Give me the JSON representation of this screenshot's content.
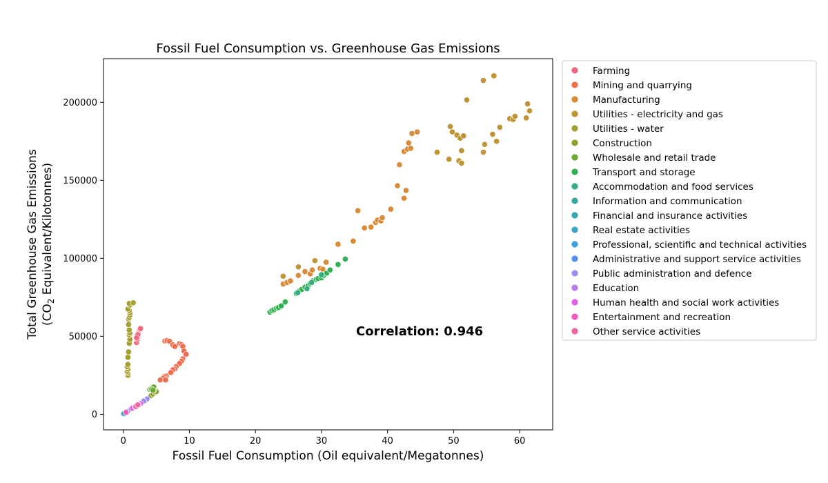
{
  "chart_data": {
    "type": "scatter",
    "title": "Fossil Fuel Consumption vs. Greenhouse Gas Emissions",
    "xlabel": "Fossil Fuel Consumption (Oil equivalent/Megatonnes)",
    "ylabel_line1": "Total Greenhouse Gas Emissions",
    "ylabel_line2_pre": "(CO",
    "ylabel_line2_sub": "2",
    "ylabel_line2_post": " Equivalent/Kilotonnes)",
    "annotation": "Correlation: 0.946",
    "xlim": [
      -3,
      65
    ],
    "ylim": [
      -10000,
      228000
    ],
    "xticks": [
      0,
      10,
      20,
      30,
      40,
      50,
      60
    ],
    "xtick_labels": [
      "0",
      "10",
      "20",
      "30",
      "40",
      "50",
      "60"
    ],
    "yticks": [
      0,
      50000,
      100000,
      150000,
      200000
    ],
    "ytick_labels": [
      "0",
      "50000",
      "100000",
      "150000",
      "200000"
    ],
    "grid": false,
    "legend_position": "outside-right",
    "series": [
      {
        "name": "Farming",
        "color": "#f0677e",
        "points": [
          [
            2.0,
            46000
          ],
          [
            2.1,
            48000
          ],
          [
            2.2,
            50000
          ],
          [
            2.3,
            52000
          ],
          [
            2.4,
            53500
          ],
          [
            2.5,
            54500
          ],
          [
            2.6,
            55000
          ],
          [
            2.2,
            51000
          ],
          [
            2.0,
            49000
          ]
        ]
      },
      {
        "name": "Mining and quarrying",
        "color": "#ee6f4f",
        "points": [
          [
            6.3,
            47000
          ],
          [
            6.6,
            47200
          ],
          [
            7.0,
            46800
          ],
          [
            7.5,
            44500
          ],
          [
            7.8,
            43500
          ],
          [
            8.5,
            45200
          ],
          [
            8.8,
            44600
          ],
          [
            9.0,
            43500
          ],
          [
            9.2,
            40500
          ],
          [
            9.5,
            38500
          ],
          [
            9.0,
            35500
          ],
          [
            8.8,
            34000
          ],
          [
            8.5,
            32500
          ],
          [
            8.0,
            30500
          ],
          [
            7.8,
            29000
          ],
          [
            7.5,
            28500
          ],
          [
            7.2,
            26800
          ],
          [
            6.5,
            24500
          ],
          [
            6.2,
            24000
          ],
          [
            6.0,
            23000
          ],
          [
            5.6,
            22000
          ],
          [
            6.4,
            22000
          ]
        ]
      },
      {
        "name": "Manufacturing",
        "color": "#d98b38",
        "points": [
          [
            24.2,
            83500
          ],
          [
            24.8,
            84500
          ],
          [
            25.3,
            85500
          ],
          [
            26.5,
            89000
          ],
          [
            27.5,
            91500
          ],
          [
            28.3,
            90000
          ],
          [
            28.6,
            92500
          ],
          [
            29.8,
            93500
          ],
          [
            30.2,
            93000
          ],
          [
            30.7,
            97500
          ],
          [
            32.5,
            109000
          ],
          [
            34.8,
            111000
          ],
          [
            35.5,
            130500
          ],
          [
            36.5,
            119500
          ],
          [
            37.5,
            120000
          ],
          [
            38.2,
            123000
          ],
          [
            38.5,
            124500
          ],
          [
            39.0,
            124000
          ],
          [
            39.2,
            126000
          ],
          [
            40.5,
            131500
          ],
          [
            41.5,
            146500
          ],
          [
            42.5,
            138500
          ],
          [
            42.8,
            143500
          ],
          [
            41.8,
            160000
          ],
          [
            42.5,
            168500
          ],
          [
            43.0,
            170000
          ],
          [
            43.5,
            170500
          ],
          [
            43.2,
            174000
          ],
          [
            43.7,
            180000
          ],
          [
            44.5,
            181000
          ]
        ]
      },
      {
        "name": "Utilities - electricity and gas",
        "color": "#bd9534",
        "points": [
          [
            24.2,
            88500
          ],
          [
            26.5,
            94500
          ],
          [
            29.0,
            98500
          ],
          [
            47.5,
            168000
          ],
          [
            49.3,
            163500
          ],
          [
            49.5,
            184500
          ],
          [
            49.8,
            181000
          ],
          [
            50.5,
            179000
          ],
          [
            50.8,
            162500
          ],
          [
            51.0,
            177000
          ],
          [
            51.2,
            161000
          ],
          [
            51.2,
            169000
          ],
          [
            51.5,
            178500
          ],
          [
            52.0,
            201500
          ],
          [
            54.5,
            214000
          ],
          [
            54.5,
            168000
          ],
          [
            54.7,
            173000
          ],
          [
            55.9,
            179500
          ],
          [
            56.1,
            217000
          ],
          [
            56.5,
            175000
          ],
          [
            57.0,
            184000
          ],
          [
            58.5,
            189500
          ],
          [
            59.0,
            189000
          ],
          [
            59.3,
            191000
          ],
          [
            61.0,
            190000
          ],
          [
            61.2,
            199000
          ],
          [
            61.5,
            194500
          ]
        ]
      },
      {
        "name": "Utilities - water",
        "color": "#a6a033",
        "points": [
          [
            0.7,
            25000
          ],
          [
            0.7,
            26500
          ],
          [
            0.6,
            27500
          ],
          [
            0.7,
            29000
          ],
          [
            0.6,
            30500
          ],
          [
            0.7,
            32000
          ],
          [
            0.7,
            36500
          ],
          [
            0.8,
            40000
          ],
          [
            0.9,
            45500
          ],
          [
            1.0,
            48000
          ],
          [
            0.9,
            51000
          ],
          [
            1.0,
            52000
          ],
          [
            0.9,
            54000
          ],
          [
            0.8,
            57500
          ],
          [
            0.8,
            61000
          ],
          [
            0.9,
            62000
          ],
          [
            1.0,
            63500
          ],
          [
            1.0,
            65000
          ],
          [
            0.9,
            66500
          ],
          [
            0.7,
            67500
          ],
          [
            1.0,
            70000
          ],
          [
            0.9,
            71000
          ],
          [
            1.5,
            71500
          ]
        ]
      },
      {
        "name": "Construction",
        "color": "#8fa42f",
        "points": [
          [
            4.2,
            12000
          ],
          [
            4.5,
            13000
          ],
          [
            4.8,
            14000
          ],
          [
            5.0,
            14500
          ],
          [
            4.6,
            15500
          ]
        ]
      },
      {
        "name": "Wholesale and retail trade",
        "color": "#6aab35",
        "points": [
          [
            4.0,
            16000
          ],
          [
            4.2,
            16500
          ],
          [
            4.4,
            17000
          ],
          [
            4.6,
            17500
          ],
          [
            4.3,
            16000
          ],
          [
            4.5,
            15500
          ]
        ]
      },
      {
        "name": "Transport and storage",
        "color": "#33b054",
        "points": [
          [
            22.2,
            65500
          ],
          [
            22.5,
            66500
          ],
          [
            22.8,
            67000
          ],
          [
            23.2,
            68000
          ],
          [
            23.5,
            68500
          ],
          [
            23.9,
            69500
          ],
          [
            24.5,
            72000
          ],
          [
            26.2,
            77500
          ],
          [
            26.6,
            79000
          ],
          [
            27.0,
            80000
          ],
          [
            27.5,
            81500
          ],
          [
            28.0,
            82500
          ],
          [
            28.3,
            84000
          ],
          [
            28.7,
            85500
          ],
          [
            29.2,
            86500
          ],
          [
            29.5,
            87000
          ],
          [
            30.0,
            87500
          ],
          [
            30.3,
            89000
          ],
          [
            30.8,
            90500
          ],
          [
            31.3,
            92500
          ],
          [
            32.5,
            96000
          ],
          [
            33.6,
            99500
          ]
        ]
      },
      {
        "name": "Accommodation and food services",
        "color": "#36ad81",
        "points": [
          [
            28.5,
            84500
          ],
          [
            30.0,
            89500
          ],
          [
            27.8,
            80500
          ],
          [
            26.4,
            78000
          ]
        ]
      },
      {
        "name": "Information and communication",
        "color": "#38aa9b",
        "points": [
          [
            0.1,
            600
          ],
          [
            0.2,
            1000
          ],
          [
            0.3,
            1400
          ]
        ]
      },
      {
        "name": "Financial and insurance activities",
        "color": "#3aa8b1",
        "points": [
          [
            0.05,
            300
          ],
          [
            0.15,
            700
          ]
        ]
      },
      {
        "name": "Real estate activities",
        "color": "#3ba4c3",
        "points": [
          [
            0.0,
            200
          ],
          [
            0.1,
            500
          ]
        ]
      },
      {
        "name": "Professional, scientific and technical activities",
        "color": "#3da0de",
        "points": [
          [
            0.4,
            1300
          ],
          [
            0.6,
            1700
          ]
        ]
      },
      {
        "name": "Administrative and support service activities",
        "color": "#5592ec",
        "points": [
          [
            1.5,
            4500
          ],
          [
            1.8,
            5000
          ],
          [
            2.1,
            5800
          ]
        ]
      },
      {
        "name": "Public administration and defence",
        "color": "#9b90ee",
        "points": [
          [
            2.5,
            7000
          ],
          [
            2.9,
            7800
          ],
          [
            3.3,
            8800
          ],
          [
            3.6,
            9800
          ],
          [
            3.1,
            8500
          ]
        ]
      },
      {
        "name": "Education",
        "color": "#b87eea",
        "points": [
          [
            1.2,
            3500
          ],
          [
            1.6,
            4300
          ],
          [
            2.0,
            5000
          ],
          [
            2.3,
            5600
          ]
        ]
      },
      {
        "name": "Human health and social work activities",
        "color": "#e360e4",
        "points": [
          [
            1.4,
            4000
          ],
          [
            1.8,
            4800
          ],
          [
            2.2,
            5800
          ],
          [
            2.6,
            6800
          ]
        ]
      },
      {
        "name": "Entertainment and recreation",
        "color": "#ee5ac2",
        "points": [
          [
            0.4,
            1200
          ],
          [
            2.0,
            5600
          ],
          [
            2.3,
            6200
          ]
        ]
      },
      {
        "name": "Other service activities",
        "color": "#f066a3",
        "points": [
          [
            1.9,
            5000
          ],
          [
            2.2,
            6000
          ]
        ]
      }
    ]
  }
}
